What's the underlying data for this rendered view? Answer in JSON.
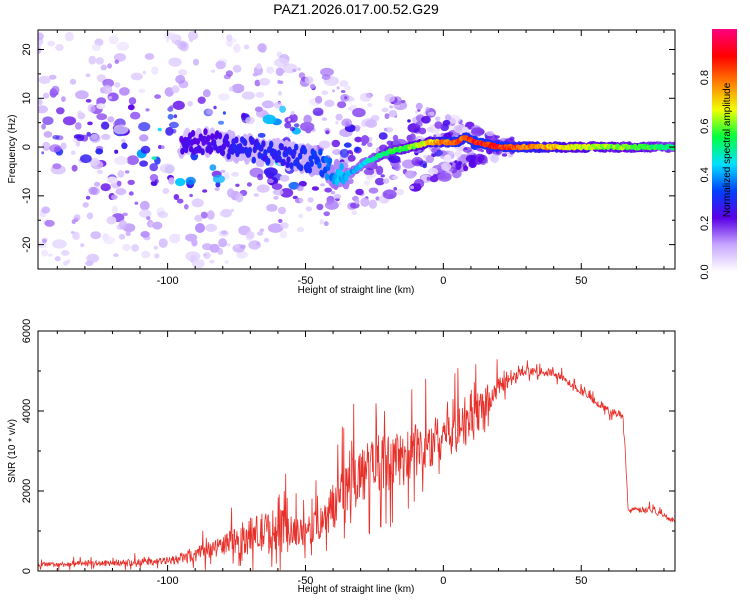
{
  "title": "PAZ1.2026.017.00.52.G29",
  "chart_data": [
    {
      "type": "heatmap",
      "name": "spectrogram",
      "xlabel": "Height of straight line (km)",
      "ylabel": "Frequency (Hz)",
      "xlim": [
        -147,
        84
      ],
      "ylim": [
        -25,
        24
      ],
      "xticks": [
        "-100",
        "-50",
        "0",
        "50"
      ],
      "xtick_values": [
        -100,
        -50,
        0,
        50
      ],
      "yticks": [
        "20",
        "10",
        "0",
        "-10",
        "-20"
      ],
      "ytick_values": [
        20,
        10,
        0,
        -10,
        -20
      ],
      "colorbar": {
        "label": "Normalized spectral amplitude",
        "range": [
          0,
          1
        ],
        "ticks": [
          "0.0",
          "0.2",
          "0.4",
          "0.6",
          "0.8"
        ],
        "tick_values": [
          0.0,
          0.2,
          0.4,
          0.6,
          0.8
        ],
        "colors": [
          "#ffffff",
          "#c8a8ff",
          "#5a00e6",
          "#0040ff",
          "#00e0ff",
          "#00ff40",
          "#f0ff00",
          "#ff8000",
          "#ff0000",
          "#ff0080"
        ]
      },
      "ridge": {
        "x": [
          -85,
          -75,
          -65,
          -55,
          -45,
          -38,
          -33,
          -28,
          -20,
          -12,
          -5,
          0,
          5,
          8,
          12,
          20,
          30,
          50,
          70,
          84
        ],
        "y": [
          1,
          0,
          -1,
          -2,
          -3,
          -6,
          -5,
          -3,
          -1,
          0,
          1,
          1,
          1,
          2,
          1,
          0,
          0,
          0,
          0,
          0
        ],
        "amplitude": [
          0.25,
          0.3,
          0.3,
          0.3,
          0.35,
          0.45,
          0.45,
          0.5,
          0.6,
          0.65,
          0.75,
          0.85,
          0.9,
          0.9,
          0.95,
          0.95,
          0.85,
          0.7,
          0.65,
          0.55
        ]
      }
    },
    {
      "type": "line",
      "name": "snr",
      "xlabel": "Height of straight line (km)",
      "ylabel": "SNR (10 * v/v)",
      "xlim": [
        -147,
        84
      ],
      "ylim": [
        0,
        6000
      ],
      "xticks": [
        "-100",
        "-50",
        "0",
        "50"
      ],
      "xtick_values": [
        -100,
        -50,
        0,
        50
      ],
      "yticks": [
        "0",
        "2000",
        "4000",
        "6000"
      ],
      "ytick_values": [
        0,
        2000,
        4000,
        6000
      ],
      "color": "#e8302a",
      "envelope": {
        "x": [
          -147,
          -120,
          -100,
          -90,
          -80,
          -70,
          -60,
          -50,
          -40,
          -35,
          -25,
          -15,
          -5,
          0,
          5,
          10,
          20,
          30,
          40,
          50,
          60,
          65,
          66,
          67,
          75,
          84
        ],
        "y": [
          150,
          200,
          250,
          400,
          650,
          900,
          1000,
          900,
          1600,
          2200,
          2600,
          2800,
          3100,
          3500,
          3700,
          3800,
          4600,
          5000,
          4950,
          4500,
          4000,
          3900,
          3000,
          1500,
          1550,
          1250
        ],
        "spread": [
          120,
          150,
          180,
          350,
          500,
          900,
          1200,
          700,
          1200,
          1600,
          1400,
          1400,
          1300,
          1300,
          1500,
          1300,
          500,
          200,
          200,
          200,
          200,
          200,
          200,
          150,
          150,
          120
        ]
      }
    }
  ]
}
